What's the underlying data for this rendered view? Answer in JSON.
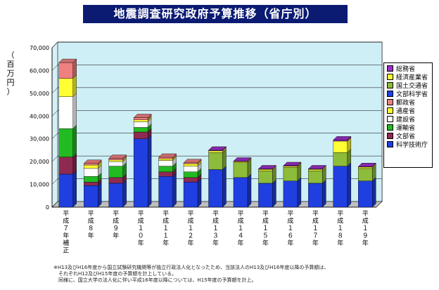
{
  "chart_data": {
    "type": "bar",
    "stacked": true,
    "title": "地震調査研究政府予算推移（省庁別）",
    "ylabel": "（百万円）",
    "ylim": [
      0,
      70000
    ],
    "yticks": [
      0,
      10000,
      20000,
      30000,
      40000,
      50000,
      60000,
      70000
    ],
    "ytick_labels": [
      "0",
      "10,000",
      "20,000",
      "30,000",
      "40,000",
      "50,000",
      "60,000",
      "70,000"
    ],
    "grid": true,
    "legend_position": "right",
    "categories": [
      "平成７年補正",
      "平成８年",
      "平成９年",
      "平成１０年",
      "平成１１年",
      "平成１２年",
      "平成１３年",
      "平成１４年",
      "平成１５年",
      "平成１６年",
      "平成１７年",
      "平成１８年",
      "平成１９年"
    ],
    "series": [
      {
        "name": "科学技術庁",
        "color": "#1f3fe0",
        "values": [
          14500,
          9500,
          10500,
          30000,
          13500,
          11000,
          0,
          0,
          0,
          0,
          0,
          0,
          0
        ]
      },
      {
        "name": "文部省",
        "color": "#8e2a52",
        "values": [
          7500,
          1500,
          2500,
          3000,
          2000,
          2000,
          0,
          0,
          0,
          0,
          0,
          0,
          0
        ]
      },
      {
        "name": "運輸省",
        "color": "#22bb22",
        "values": [
          12500,
          2500,
          5000,
          2000,
          2500,
          2500,
          0,
          0,
          0,
          0,
          0,
          0,
          0
        ]
      },
      {
        "name": "建設省",
        "color": "#ffffff",
        "values": [
          14000,
          3500,
          2000,
          2500,
          2500,
          2500,
          0,
          0,
          0,
          0,
          0,
          0,
          0
        ]
      },
      {
        "name": "通産省",
        "color": "#ffff33",
        "values": [
          8000,
          1500,
          700,
          800,
          700,
          1000,
          0,
          0,
          0,
          0,
          0,
          0,
          0
        ]
      },
      {
        "name": "郵政省",
        "color": "#f08080",
        "values": [
          7000,
          700,
          700,
          1000,
          700,
          500,
          0,
          0,
          0,
          0,
          0,
          0,
          0
        ]
      },
      {
        "name": "文部科学省",
        "color": "#1f3fe0",
        "values": [
          0,
          0,
          0,
          0,
          0,
          0,
          16500,
          13000,
          10500,
          11500,
          10500,
          18000,
          11500
        ]
      },
      {
        "name": "国土交通省",
        "color": "#8dbb3a",
        "values": [
          0,
          0,
          0,
          0,
          0,
          0,
          7500,
          6500,
          5500,
          6000,
          5500,
          6000,
          5500
        ]
      },
      {
        "name": "経済産業省",
        "color": "#ffff33",
        "values": [
          0,
          0,
          0,
          0,
          0,
          0,
          700,
          500,
          600,
          500,
          600,
          5000,
          600
        ]
      },
      {
        "name": "総務省",
        "color": "#9a30c8",
        "values": [
          0,
          0,
          0,
          0,
          0,
          0,
          300,
          200,
          200,
          200,
          200,
          500,
          200
        ]
      }
    ]
  },
  "unit_chars": [
    "（",
    "百",
    "万",
    "円",
    "）"
  ],
  "footnote": [
    "※H13及びH16年度から国立試験研究機関等が独立行政法人化となったため、当該法人のH13及びH16年度以降の予算額は、",
    "　それぞれH12及びH15年度の予算額を計上している。",
    "　同様に、国立大学の法人化に伴い平成16年度以降については、H15年度の予算額を計上。"
  ]
}
